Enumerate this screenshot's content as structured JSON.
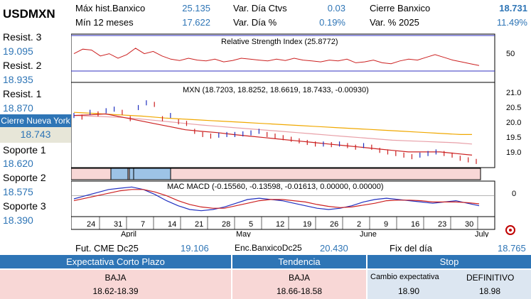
{
  "header": {
    "symbol": "USDMXN",
    "max_label": "Máx hist.Banxico",
    "max_value": "25.135",
    "min_label": "Mín 12 meses",
    "min_value": "17.622",
    "var_ctvs_label": "Var. Día Ctvs",
    "var_ctvs_value": "0.03",
    "var_pct_label": "Var. Día %",
    "var_pct_value": "0.19%",
    "cierre_label": "Cierre Banxico",
    "cierre_value": "18.731",
    "var2025_label": "Var. % 2025",
    "var2025_value": "11.49%"
  },
  "levels": {
    "r3_label": "Resist. 3",
    "r3_value": "19.095",
    "r2_label": "Resist. 2",
    "r2_value": "18.935",
    "r1_label": "Resist. 1",
    "r1_value": "18.870",
    "ny_label": "Cierre Nueva York",
    "ny_value": "18.743",
    "s1_label": "Soporte 1",
    "s1_value": "18.620",
    "s2_label": "Soporte 2",
    "s2_value": "18.575",
    "s3_label": "Soporte 3",
    "s3_value": "18.390"
  },
  "chart": {
    "rsi_title": "Relative Strength Index (25.8772)",
    "rsi_tick": "50",
    "price_title": "MXN (18.7203, 18.8252, 18.6619, 18.7433, -0.00930)",
    "price_ticks": [
      "21.0",
      "20.5",
      "20.0",
      "19.5",
      "19.0"
    ],
    "macd_title": "MAC MACD (-0.15560, -0.13598, -0.01613, 0.00000, 0.00000)",
    "macd_tick": "0",
    "day_ticks": [
      "24",
      "31",
      "7",
      "14",
      "21",
      "28",
      "5",
      "12",
      "19",
      "26",
      "2",
      "9",
      "16",
      "23",
      "30"
    ],
    "month_labels": [
      "April",
      "May",
      "June",
      "July"
    ]
  },
  "chart_data": {
    "type": "line",
    "price_range": [
      18.6,
      21.2
    ],
    "close": [
      20.2,
      20.15,
      20.3,
      20.25,
      20.35,
      20.4,
      20.3,
      20.1,
      20.45,
      20.6,
      20.55,
      20.1,
      20.2,
      20.0,
      19.95,
      19.7,
      19.6,
      19.55,
      19.58,
      19.6,
      19.6,
      19.62,
      19.65,
      19.7,
      19.6,
      19.55,
      19.5,
      19.45,
      19.4,
      19.35,
      19.3,
      19.3,
      19.28,
      19.3,
      19.25,
      19.2,
      19.25,
      19.2,
      19.1,
      19.05,
      19.0,
      18.95,
      18.9,
      18.95,
      19.0,
      19.05,
      19.0,
      18.95,
      18.85,
      18.8,
      18.75
    ],
    "ma_slow": [
      20.3,
      20.28,
      20.26,
      20.24,
      20.22,
      20.2,
      20.18,
      20.15,
      20.12,
      20.1,
      20.08,
      20.06,
      20.04,
      20.02,
      20.0,
      19.98,
      19.96,
      19.94,
      19.92,
      19.9,
      19.88,
      19.86,
      19.84,
      19.82,
      19.8,
      19.78,
      19.76,
      19.74,
      19.72,
      19.7,
      19.68,
      19.66,
      19.64,
      19.62,
      19.6,
      19.6
    ],
    "ma_mid": [
      20.2,
      20.18,
      20.16,
      20.14,
      20.1,
      20.05,
      20.0,
      19.95,
      19.9,
      19.86,
      19.82,
      19.78,
      19.74,
      19.7,
      19.66,
      19.62,
      19.58,
      19.54,
      19.5,
      19.46,
      19.42,
      19.4,
      19.38,
      19.36,
      19.34,
      19.3
    ],
    "ma_fast": [
      20.2,
      20.22,
      20.25,
      20.15,
      20.05,
      19.95,
      19.85,
      19.75,
      19.7,
      19.66,
      19.6,
      19.55,
      19.5,
      19.45,
      19.4,
      19.35,
      19.3,
      19.25,
      19.2,
      19.15,
      19.1,
      19.05,
      19.05,
      19.05,
      19.0,
      18.95
    ],
    "rsi": [
      60,
      70,
      68,
      55,
      60,
      50,
      58,
      72,
      60,
      65,
      55,
      48,
      45,
      50,
      46,
      44,
      48,
      42,
      45,
      50,
      48,
      46,
      44,
      48,
      45,
      50,
      46,
      44,
      42,
      46,
      44,
      48,
      40,
      42,
      46,
      40,
      38,
      44,
      48,
      46,
      52,
      58,
      52,
      46,
      42,
      38,
      34
    ],
    "macd_range": [
      -0.3,
      0.2
    ],
    "macd": [
      -0.05,
      0.0,
      0.05,
      0.1,
      0.12,
      0.14,
      0.1,
      0.02,
      -0.08,
      -0.16,
      -0.22,
      -0.24,
      -0.22,
      -0.18,
      -0.12,
      -0.06,
      -0.04,
      -0.06,
      -0.08,
      -0.12,
      -0.16,
      -0.2,
      -0.22,
      -0.2,
      -0.16,
      -0.1,
      -0.06,
      -0.04,
      -0.06,
      -0.08,
      -0.1,
      -0.12,
      -0.1,
      -0.08,
      -0.12,
      -0.16
    ],
    "signal": [
      -0.08,
      -0.04,
      0.0,
      0.04,
      0.08,
      0.1,
      0.1,
      0.06,
      0.0,
      -0.08,
      -0.14,
      -0.18,
      -0.2,
      -0.2,
      -0.16,
      -0.12,
      -0.08,
      -0.06,
      -0.06,
      -0.08,
      -0.1,
      -0.14,
      -0.17,
      -0.19,
      -0.18,
      -0.15,
      -0.12,
      -0.08,
      -0.07,
      -0.07,
      -0.08,
      -0.1,
      -0.1,
      -0.1,
      -0.11,
      -0.13
    ]
  },
  "footer": {
    "fut_label": "Fut. CME Dc25",
    "fut_value": "19.106",
    "enc_label": "Enc.BanxicoDc25",
    "enc_value": "20.430",
    "fix_label": "Fix del día",
    "fix_value": "18.765"
  },
  "table": {
    "h1": "Expectativa Corto Plazo",
    "h2": "Tendencia",
    "h3": "Stop",
    "c1a": "BAJA",
    "c1b": "18.62-18.39",
    "c2a": "BAJA",
    "c2b": "18.66-18.58",
    "c3_label": "Cambio expectativa",
    "c3_label2": "DEFINITIVO",
    "c3_val": "18.90",
    "c3_val2": "18.98"
  }
}
